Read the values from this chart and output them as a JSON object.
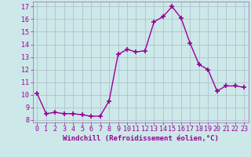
{
  "x": [
    0,
    1,
    2,
    3,
    4,
    5,
    6,
    7,
    8,
    9,
    10,
    11,
    12,
    13,
    14,
    15,
    16,
    17,
    18,
    19,
    20,
    21,
    22,
    23
  ],
  "y": [
    10.1,
    8.5,
    8.6,
    8.5,
    8.5,
    8.4,
    8.3,
    8.3,
    9.5,
    13.2,
    13.6,
    13.4,
    13.5,
    15.8,
    16.2,
    17.0,
    16.1,
    14.1,
    12.4,
    12.0,
    10.3,
    10.7,
    10.7,
    10.6
  ],
  "line_color": "#990099",
  "marker": "+",
  "marker_size": 4,
  "marker_linewidth": 1.2,
  "bg_color": "#cce8e8",
  "grid_color": "#aabbcc",
  "xlabel": "Windchill (Refroidissement éolien,°C)",
  "xlabel_color": "#990099",
  "tick_color": "#990099",
  "spine_color": "#9966aa",
  "ylim": [
    7.8,
    17.4
  ],
  "xlim": [
    -0.5,
    23.5
  ],
  "yticks": [
    8,
    9,
    10,
    11,
    12,
    13,
    14,
    15,
    16,
    17
  ],
  "xticks": [
    0,
    1,
    2,
    3,
    4,
    5,
    6,
    7,
    8,
    9,
    10,
    11,
    12,
    13,
    14,
    15,
    16,
    17,
    18,
    19,
    20,
    21,
    22,
    23
  ],
  "linewidth": 1.0,
  "tick_fontsize": 6.0,
  "xlabel_fontsize": 6.5
}
